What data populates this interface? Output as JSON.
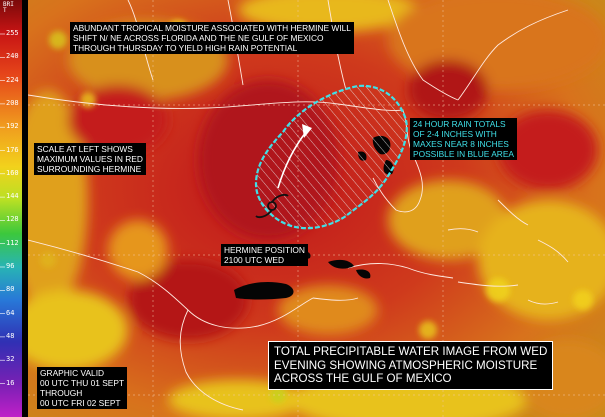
{
  "scale": {
    "title": "BRIT",
    "ticks": [
      "255",
      "240",
      "224",
      "208",
      "192",
      "176",
      "160",
      "144",
      "128",
      "112",
      "96",
      "80",
      "64",
      "48",
      "32",
      "16"
    ]
  },
  "labels": {
    "moisture": "ABUNDANT TROPICAL MOISTURE ASSOCIATED WITH HERMINE WILL\nSHIFT N/ NE ACROSS FLORIDA AND THE NE GULF OF MEXICO\nTHROUGH THURSDAY TO YIELD HIGH RAIN POTENTIAL",
    "scale_note": "SCALE AT LEFT SHOWS\nMAXIMUM VALUES IN RED\nSURROUNDING HERMINE",
    "rain": "24 HOUR RAIN TOTALS\nOF 2-4 INCHES WITH\nMAXES NEAR 8 INCHES\nPOSSIBLE IN BLUE AREA",
    "position": "HERMINE POSITION\n2100 UTC WED",
    "valid": "GRAPHIC VALID\n00 UTC THU 01 SEPT\nTHROUGH\n00 UTC FRI 02 SEPT",
    "title": "TOTAL PRECIPITABLE WATER IMAGE FROM WED\nEVENING SHOWING ATMOSPHERIC MOISTURE\nACROSS THE GULF OF MEXICO"
  },
  "colors": {
    "max_red": "#c0161c",
    "moist_orange": "#d85a1c",
    "dry_yellow": "#e8c21a",
    "outline_cyan": "#3fe0e8"
  }
}
